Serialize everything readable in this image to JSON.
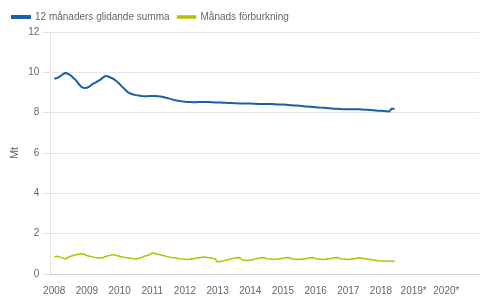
{
  "chart_data": {
    "type": "line",
    "ylabel": "Mt",
    "x": [
      2008,
      2008.0833333333333,
      2008.1666666666667,
      2008.25,
      2008.3333333333333,
      2008.4166666666667,
      2008.5,
      2008.5833333333333,
      2008.6666666666667,
      2008.75,
      2008.8333333333333,
      2008.9166666666667,
      2009,
      2009.0833333333333,
      2009.1666666666667,
      2009.25,
      2009.3333333333333,
      2009.4166666666667,
      2009.5,
      2009.5833333333333,
      2009.6666666666667,
      2009.75,
      2009.8333333333333,
      2009.9166666666667,
      2010,
      2010.0833333333333,
      2010.1666666666667,
      2010.25,
      2010.3333333333333,
      2010.4166666666667,
      2010.5,
      2010.5833333333333,
      2010.6666666666667,
      2010.75,
      2010.8333333333333,
      2010.9166666666667,
      2011,
      2011.0833333333333,
      2011.1666666666667,
      2011.25,
      2011.3333333333333,
      2011.4166666666667,
      2011.5,
      2011.5833333333333,
      2011.6666666666667,
      2011.75,
      2011.8333333333333,
      2011.9166666666667,
      2012,
      2012.0833333333333,
      2012.1666666666667,
      2012.25,
      2012.3333333333333,
      2012.4166666666667,
      2012.5,
      2012.5833333333333,
      2012.6666666666667,
      2012.75,
      2012.8333333333333,
      2012.9166666666667,
      2013,
      2013.0833333333333,
      2013.1666666666667,
      2013.25,
      2013.3333333333333,
      2013.4166666666667,
      2013.5,
      2013.5833333333333,
      2013.6666666666667,
      2013.75,
      2013.8333333333333,
      2013.9166666666667,
      2014,
      2014.0833333333333,
      2014.1666666666667,
      2014.25,
      2014.3333333333333,
      2014.4166666666667,
      2014.5,
      2014.5833333333333,
      2014.6666666666667,
      2014.75,
      2014.8333333333333,
      2014.9166666666667,
      2015,
      2015.0833333333333,
      2015.1666666666667,
      2015.25,
      2015.3333333333333,
      2015.4166666666667,
      2015.5,
      2015.5833333333333,
      2015.6666666666667,
      2015.75,
      2015.8333333333333,
      2015.9166666666667,
      2016,
      2016.0833333333333,
      2016.1666666666667,
      2016.25,
      2016.3333333333333,
      2016.4166666666667,
      2016.5,
      2016.5833333333333,
      2016.6666666666667,
      2016.75,
      2016.8333333333333,
      2016.9166666666667,
      2017,
      2017.0833333333333,
      2017.1666666666667,
      2017.25,
      2017.3333333333333,
      2017.4166666666667,
      2017.5,
      2017.5833333333333,
      2017.6666666666667,
      2017.75,
      2017.8333333333333,
      2017.9166666666667,
      2018,
      2018.0833333333333,
      2018.1666666666667,
      2018.25,
      2018.3333333333333,
      2018.4166666666667
    ],
    "series": [
      {
        "name": "12 månaders glidande summa",
        "color": "#1a5fa8",
        "values": [
          9.68,
          9.72,
          9.79,
          9.89,
          9.97,
          9.93,
          9.85,
          9.73,
          9.6,
          9.42,
          9.28,
          9.22,
          9.24,
          9.3,
          9.42,
          9.48,
          9.56,
          9.64,
          9.75,
          9.83,
          9.78,
          9.72,
          9.65,
          9.55,
          9.42,
          9.28,
          9.15,
          9.02,
          8.95,
          8.9,
          8.87,
          8.85,
          8.83,
          8.82,
          8.82,
          8.83,
          8.83,
          8.83,
          8.82,
          8.8,
          8.78,
          8.74,
          8.71,
          8.67,
          8.63,
          8.6,
          8.58,
          8.56,
          8.54,
          8.53,
          8.53,
          8.52,
          8.52,
          8.53,
          8.53,
          8.53,
          8.53,
          8.53,
          8.52,
          8.51,
          8.5,
          8.5,
          8.49,
          8.49,
          8.48,
          8.48,
          8.47,
          8.47,
          8.46,
          8.46,
          8.46,
          8.46,
          8.45,
          8.44,
          8.44,
          8.43,
          8.43,
          8.43,
          8.43,
          8.43,
          8.43,
          8.42,
          8.41,
          8.41,
          8.4,
          8.39,
          8.38,
          8.37,
          8.36,
          8.35,
          8.34,
          8.33,
          8.31,
          8.3,
          8.29,
          8.28,
          8.27,
          8.26,
          8.25,
          8.24,
          8.23,
          8.22,
          8.21,
          8.2,
          8.19,
          8.18,
          8.17,
          8.17,
          8.17,
          8.17,
          8.17,
          8.17,
          8.17,
          8.16,
          8.15,
          8.14,
          8.13,
          8.12,
          8.11,
          8.1,
          8.09,
          8.08,
          8.07,
          8.06,
          8.2,
          8.18
        ]
      },
      {
        "name": "Månads förburkning",
        "color": "#b5c000",
        "values": [
          0.85,
          0.88,
          0.85,
          0.8,
          0.75,
          0.82,
          0.88,
          0.92,
          0.95,
          0.98,
          1.0,
          0.98,
          0.92,
          0.88,
          0.85,
          0.82,
          0.8,
          0.78,
          0.82,
          0.88,
          0.9,
          0.95,
          0.95,
          0.92,
          0.88,
          0.85,
          0.82,
          0.8,
          0.78,
          0.76,
          0.75,
          0.78,
          0.82,
          0.88,
          0.92,
          0.95,
          1.05,
          1.02,
          0.98,
          0.95,
          0.92,
          0.88,
          0.85,
          0.82,
          0.8,
          0.78,
          0.76,
          0.75,
          0.73,
          0.72,
          0.74,
          0.76,
          0.78,
          0.8,
          0.82,
          0.84,
          0.82,
          0.8,
          0.78,
          0.76,
          0.6,
          0.62,
          0.65,
          0.68,
          0.72,
          0.75,
          0.78,
          0.8,
          0.82,
          0.7,
          0.68,
          0.67,
          0.7,
          0.72,
          0.75,
          0.78,
          0.8,
          0.82,
          0.76,
          0.74,
          0.73,
          0.72,
          0.74,
          0.76,
          0.78,
          0.8,
          0.82,
          0.76,
          0.74,
          0.73,
          0.72,
          0.74,
          0.76,
          0.78,
          0.8,
          0.82,
          0.76,
          0.74,
          0.73,
          0.72,
          0.74,
          0.76,
          0.78,
          0.8,
          0.82,
          0.76,
          0.74,
          0.73,
          0.72,
          0.74,
          0.76,
          0.78,
          0.8,
          0.78,
          0.76,
          0.74,
          0.72,
          0.7,
          0.68,
          0.66,
          0.65,
          0.64,
          0.63,
          0.65,
          0.62,
          0.64
        ]
      }
    ],
    "xlim": [
      2007.88,
      2021.0
    ],
    "xticks": [
      2008,
      2009,
      2010,
      2011,
      2012,
      2013,
      2014,
      2015,
      2016,
      2017,
      2018,
      {
        "value": 2019,
        "label": "2019*"
      },
      {
        "value": 2020,
        "label": "2020*"
      }
    ],
    "ylim": [
      0,
      12
    ],
    "yticks": [
      0,
      2,
      4,
      6,
      8,
      10,
      12
    ],
    "grid": "y",
    "legend": "upper left"
  }
}
